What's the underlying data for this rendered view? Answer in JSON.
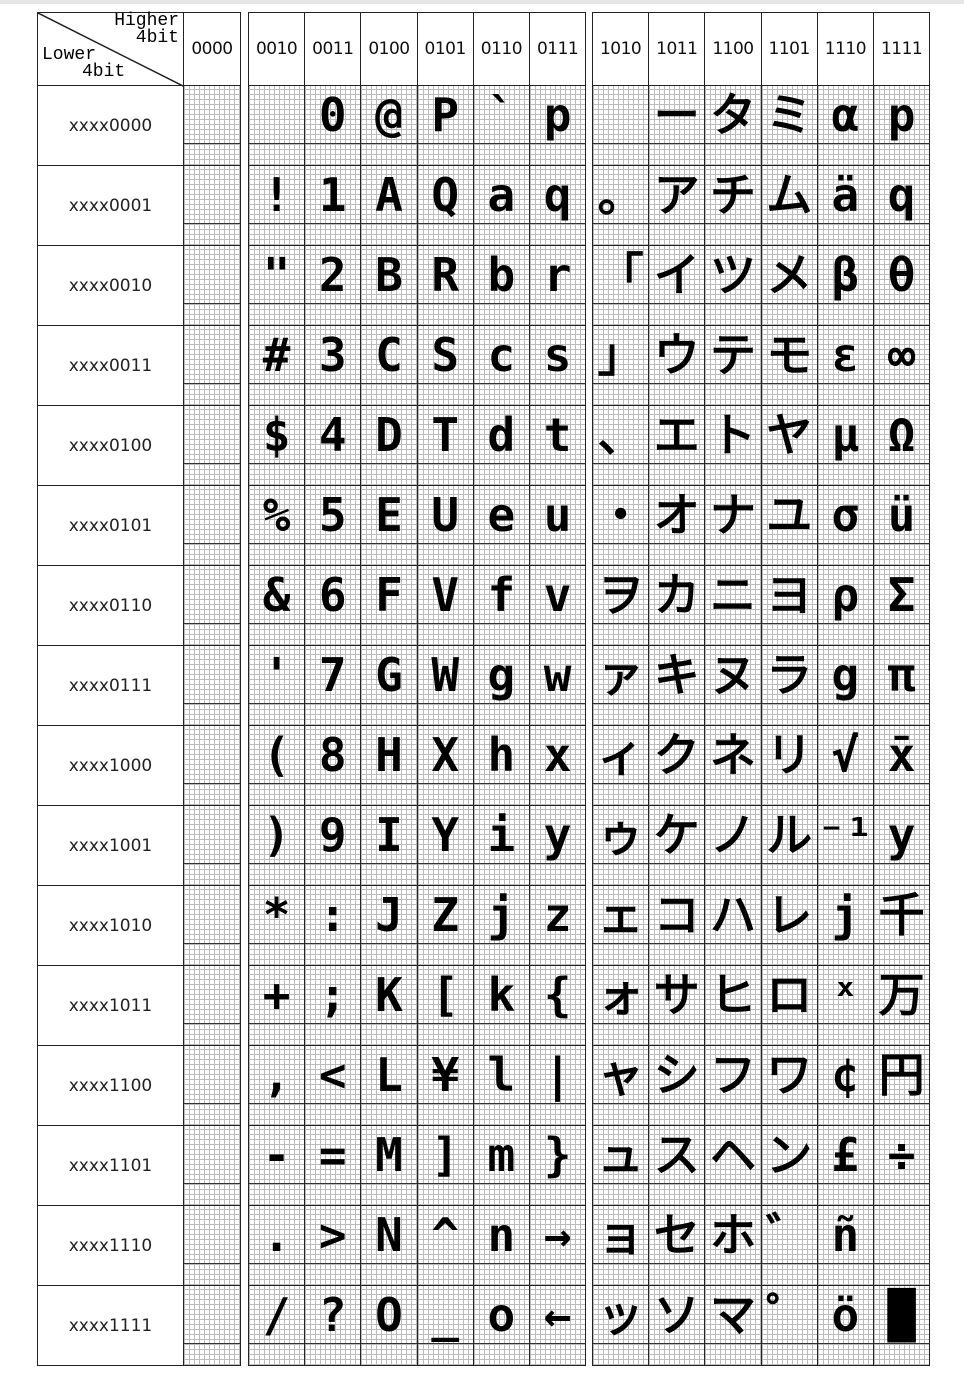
{
  "corner": {
    "higher": "Higher",
    "higher_sub": "4bit",
    "lower": "Lower",
    "lower_sub": "4bit"
  },
  "columns": [
    "0000",
    "0010",
    "0011",
    "0100",
    "0101",
    "0110",
    "0111",
    "1010",
    "1011",
    "1100",
    "1101",
    "1110",
    "1111"
  ],
  "rows": [
    "xxxx0000",
    "xxxx0001",
    "xxxx0010",
    "xxxx0011",
    "xxxx0100",
    "xxxx0101",
    "xxxx0110",
    "xxxx0111",
    "xxxx1000",
    "xxxx1001",
    "xxxx1010",
    "xxxx1011",
    "xxxx1100",
    "xxxx1101",
    "xxxx1110",
    "xxxx1111"
  ],
  "glyphs": {
    "0000": [
      "",
      "",
      "",
      "",
      "",
      "",
      "",
      "",
      "",
      "",
      "",
      "",
      "",
      "",
      "",
      ""
    ],
    "0010": [
      " ",
      "!",
      "\"",
      "#",
      "$",
      "%",
      "&",
      "'",
      "(",
      ")",
      "*",
      "+",
      ",",
      "-",
      ".",
      "/"
    ],
    "0011": [
      "0",
      "1",
      "2",
      "3",
      "4",
      "5",
      "6",
      "7",
      "8",
      "9",
      ":",
      ";",
      "<",
      "=",
      ">",
      "?"
    ],
    "0100": [
      "@",
      "A",
      "B",
      "C",
      "D",
      "E",
      "F",
      "G",
      "H",
      "I",
      "J",
      "K",
      "L",
      "M",
      "N",
      "O"
    ],
    "0101": [
      "P",
      "Q",
      "R",
      "S",
      "T",
      "U",
      "V",
      "W",
      "X",
      "Y",
      "Z",
      "[",
      "¥",
      "]",
      "^",
      "_"
    ],
    "0110": [
      "`",
      "a",
      "b",
      "c",
      "d",
      "e",
      "f",
      "g",
      "h",
      "i",
      "j",
      "k",
      "l",
      "m",
      "n",
      "o"
    ],
    "0111": [
      "p",
      "q",
      "r",
      "s",
      "t",
      "u",
      "v",
      "w",
      "x",
      "y",
      "z",
      "{",
      "|",
      "}",
      "→",
      "←"
    ],
    "1010": [
      " ",
      "。",
      "「",
      "」",
      "、",
      "・",
      "ヲ",
      "ァ",
      "ィ",
      "ゥ",
      "ェ",
      "ォ",
      "ャ",
      "ュ",
      "ョ",
      "ッ"
    ],
    "1011": [
      "ー",
      "ア",
      "イ",
      "ウ",
      "エ",
      "オ",
      "カ",
      "キ",
      "ク",
      "ケ",
      "コ",
      "サ",
      "シ",
      "ス",
      "セ",
      "ソ"
    ],
    "1100": [
      "タ",
      "チ",
      "ツ",
      "テ",
      "ト",
      "ナ",
      "ニ",
      "ヌ",
      "ネ",
      "ノ",
      "ハ",
      "ヒ",
      "フ",
      "ヘ",
      "ホ",
      "マ"
    ],
    "1101": [
      "ミ",
      "ム",
      "メ",
      "モ",
      "ヤ",
      "ユ",
      "ヨ",
      "ラ",
      "リ",
      "ル",
      "レ",
      "ロ",
      "ワ",
      "ン",
      "゛",
      "゜"
    ],
    "1110": [
      "α",
      "ä",
      "β",
      "ε",
      "μ",
      "σ",
      "ρ",
      "g",
      "√",
      "⁻¹",
      "j",
      "ˣ",
      "¢",
      "£",
      "ñ",
      "ö"
    ],
    "1111": [
      "p",
      "q",
      "θ",
      "∞",
      "Ω",
      "ü",
      "Σ",
      "π",
      "x̄",
      "y",
      "千",
      "万",
      "円",
      "÷",
      " ",
      "█"
    ]
  }
}
